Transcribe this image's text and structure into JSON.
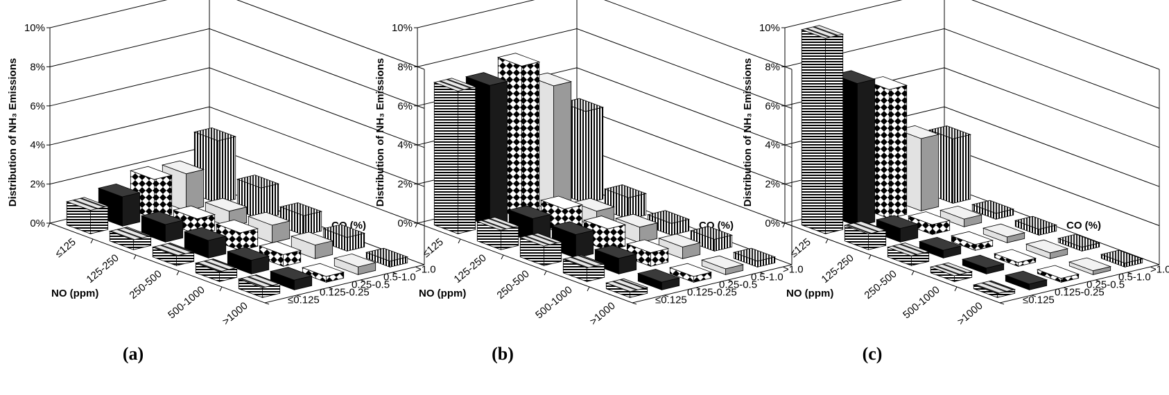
{
  "chart_data": [
    {
      "type": "bar3d",
      "panel_label": "(a)",
      "ylabel": "Distribution of NH₃ Emissions",
      "xlabel": "NO (ppm)",
      "zlabel": "CO (%)",
      "y_ticks": [
        "0%",
        "2%",
        "4%",
        "6%",
        "8%",
        "10%"
      ],
      "ylim": [
        0,
        10
      ],
      "x_categories": [
        "≤125",
        "125-250",
        "250-500",
        "500-1000",
        ">1000"
      ],
      "z_categories": [
        "≤0.125",
        "0.125-0.25",
        "0.25-0.5",
        "0.5-1.0",
        ">1.0"
      ],
      "series": [
        {
          "co": "≤0.125",
          "pattern": "hstripe",
          "values": [
            1.2,
            0.5,
            0.5,
            0.5,
            0.5
          ]
        },
        {
          "co": "0.125-0.25",
          "pattern": "solid-black",
          "values": [
            1.5,
            0.9,
            0.9,
            0.7,
            0.5
          ]
        },
        {
          "co": "0.25-0.5",
          "pattern": "diamond",
          "values": [
            2.0,
            0.8,
            0.9,
            0.6,
            0.3
          ]
        },
        {
          "co": "0.5-1.0",
          "pattern": "light-gray",
          "values": [
            1.9,
            0.8,
            0.9,
            0.7,
            0.4
          ]
        },
        {
          "co": ">1.0",
          "pattern": "vstripe",
          "values": [
            3.2,
            1.6,
            1.0,
            0.7,
            0.3
          ]
        }
      ]
    },
    {
      "type": "bar3d",
      "panel_label": "(b)",
      "ylabel": "Distribution of NH₃ Emissions",
      "xlabel": "NO (ppm)",
      "zlabel": "CO (%)",
      "y_ticks": [
        "0%",
        "2%",
        "4%",
        "6%",
        "8%",
        "10%"
      ],
      "ylim": [
        0,
        10
      ],
      "x_categories": [
        "≤125",
        "125-250",
        "250-500",
        "500-1000",
        ">1000"
      ],
      "z_categories": [
        "≤0.125",
        "0.125-0.25",
        "0.25-0.5",
        "0.5-1.0",
        ">1.0"
      ],
      "series": [
        {
          "co": "≤0.125",
          "pattern": "hstripe",
          "values": [
            7.3,
            1.0,
            1.0,
            0.7,
            0.3
          ]
        },
        {
          "co": "0.125-0.25",
          "pattern": "solid-black",
          "values": [
            7.2,
            1.2,
            1.2,
            0.8,
            0.4
          ]
        },
        {
          "co": "0.25-0.5",
          "pattern": "diamond",
          "values": [
            7.8,
            1.3,
            1.1,
            0.7,
            0.3
          ]
        },
        {
          "co": "0.5-1.0",
          "pattern": "light-gray",
          "values": [
            6.4,
            0.8,
            0.8,
            0.6,
            0.3
          ]
        },
        {
          "co": ">1.0",
          "pattern": "vstripe",
          "values": [
            4.7,
            1.1,
            0.6,
            0.6,
            0.3
          ]
        }
      ]
    },
    {
      "type": "bar3d",
      "panel_label": "(c)",
      "ylabel": "Distribution of NH₃ Emissions",
      "xlabel": "NO (ppm)",
      "zlabel": "CO (%)",
      "y_ticks": [
        "0%",
        "2%",
        "4%",
        "6%",
        "8%",
        "10%"
      ],
      "ylim": [
        0,
        10
      ],
      "x_categories": [
        "≤125",
        "125-250",
        "250-500",
        "500-1000",
        ">1000"
      ],
      "z_categories": [
        "≤0.125",
        "0.125-0.25",
        "0.25-0.5",
        "0.5-1.0",
        ">1.0"
      ],
      "series": [
        {
          "co": "≤0.125",
          "pattern": "hstripe",
          "values": [
            10.0,
            0.8,
            0.5,
            0.3,
            0.2
          ]
        },
        {
          "co": "0.125-0.25",
          "pattern": "solid-black",
          "values": [
            7.3,
            0.7,
            0.4,
            0.3,
            0.3
          ]
        },
        {
          "co": "0.25-0.5",
          "pattern": "diamond",
          "values": [
            6.6,
            0.5,
            0.3,
            0.2,
            0.2
          ]
        },
        {
          "co": "0.5-1.0",
          "pattern": "light-gray",
          "values": [
            3.7,
            0.4,
            0.3,
            0.3,
            0.2
          ]
        },
        {
          "co": ">1.0",
          "pattern": "vstripe",
          "values": [
            3.3,
            0.3,
            0.3,
            0.2,
            0.2
          ]
        }
      ]
    }
  ]
}
